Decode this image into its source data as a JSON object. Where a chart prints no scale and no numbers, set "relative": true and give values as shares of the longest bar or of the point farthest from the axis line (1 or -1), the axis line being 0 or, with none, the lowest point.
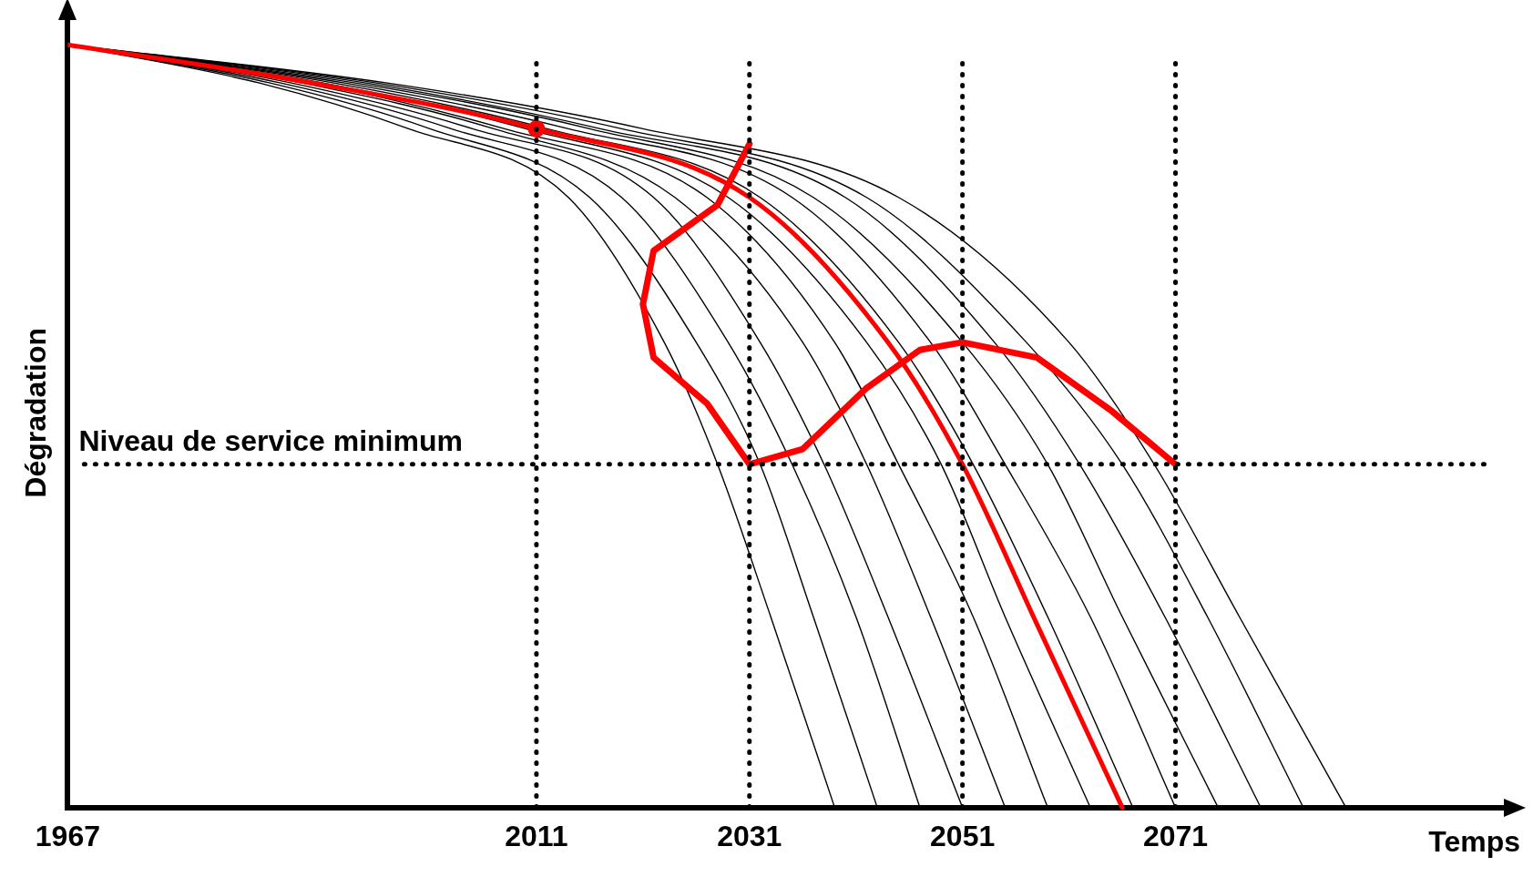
{
  "chart_data": {
    "type": "line",
    "relative": true,
    "xlabel": "Temps",
    "ylabel": "Dégradation",
    "xlim": [
      1967,
      2102
    ],
    "xticks": [
      1967,
      2011,
      2031,
      2051,
      2071
    ],
    "grid": false,
    "legend": false,
    "marker": "none",
    "series": [
      {
        "color": "#000000",
        "x": [
          1967,
          1985,
          1999,
          2014,
          2023,
          2028,
          2033,
          2039
        ],
        "values": [
          1,
          0.95,
          0.89,
          0.8,
          0.61,
          0.45,
          0.25,
          0
        ]
      },
      {
        "color": "#000000",
        "x": [
          1967,
          1986,
          2001,
          2016,
          2026,
          2032,
          2037,
          2043
        ],
        "values": [
          1,
          0.95,
          0.89,
          0.8,
          0.61,
          0.45,
          0.25,
          0
        ]
      },
      {
        "color": "#000000",
        "x": [
          1967,
          1987,
          2003,
          2019,
          2029,
          2035,
          2041,
          2047
        ],
        "values": [
          1,
          0.95,
          0.89,
          0.8,
          0.61,
          0.45,
          0.25,
          0
        ]
      },
      {
        "color": "#000000",
        "x": [
          1967,
          1988,
          2005,
          2022,
          2032,
          2038,
          2044,
          2051
        ],
        "values": [
          1,
          0.95,
          0.89,
          0.8,
          0.61,
          0.45,
          0.25,
          0
        ]
      },
      {
        "color": "#000000",
        "x": [
          1967,
          1989,
          2007,
          2024,
          2036,
          2042,
          2048,
          2055
        ],
        "values": [
          1,
          0.95,
          0.89,
          0.8,
          0.61,
          0.45,
          0.25,
          0
        ]
      },
      {
        "color": "#000000",
        "x": [
          1967,
          1990,
          2008,
          2027,
          2039,
          2045,
          2052,
          2059
        ],
        "values": [
          1,
          0.95,
          0.89,
          0.8,
          0.61,
          0.45,
          0.25,
          0
        ]
      },
      {
        "color": "#000000",
        "x": [
          1967,
          1991,
          2010,
          2029,
          2042,
          2049,
          2055,
          2063
        ],
        "values": [
          1,
          0.95,
          0.89,
          0.8,
          0.61,
          0.45,
          0.25,
          0
        ]
      },
      {
        "color": "#000000",
        "x": [
          1967,
          1992,
          2012,
          2032,
          2045,
          2052,
          2059,
          2067
        ],
        "values": [
          1,
          0.95,
          0.89,
          0.8,
          0.61,
          0.45,
          0.25,
          0
        ]
      },
      {
        "color": "#000000",
        "x": [
          1967,
          1993,
          2014,
          2035,
          2048,
          2055,
          2063,
          2071
        ],
        "values": [
          1,
          0.95,
          0.89,
          0.8,
          0.61,
          0.45,
          0.25,
          0
        ]
      },
      {
        "color": "#000000",
        "x": [
          1967,
          1994,
          2016,
          2037,
          2051,
          2059,
          2066,
          2075
        ],
        "values": [
          1,
          0.95,
          0.89,
          0.8,
          0.61,
          0.45,
          0.25,
          0
        ]
      },
      {
        "color": "#000000",
        "x": [
          1967,
          1995,
          2017,
          2040,
          2054,
          2062,
          2070,
          2079
        ],
        "values": [
          1,
          0.95,
          0.89,
          0.8,
          0.61,
          0.45,
          0.25,
          0
        ]
      },
      {
        "color": "#000000",
        "x": [
          1967,
          1996,
          2019,
          2042,
          2057,
          2066,
          2074,
          2083
        ],
        "values": [
          1,
          0.95,
          0.89,
          0.8,
          0.61,
          0.45,
          0.25,
          0
        ]
      },
      {
        "color": "#000000",
        "x": [
          1967,
          1997,
          2021,
          2045,
          2061,
          2069,
          2077,
          2087
        ],
        "values": [
          1,
          0.95,
          0.89,
          0.8,
          0.61,
          0.45,
          0.25,
          0
        ]
      },
      {
        "color": "#ff0000",
        "x": [
          1967,
          1990,
          2011,
          2031,
          2044,
          2051,
          2058,
          2066
        ],
        "values": [
          1,
          0.95,
          0.89,
          0.8,
          0.61,
          0.45,
          0.24,
          0
        ]
      },
      {
        "color": "#ff0000",
        "x": [
          2031,
          2028,
          2022,
          2021,
          2022,
          2027,
          2031,
          2036,
          2042,
          2047,
          2051,
          2058,
          2065,
          2071
        ],
        "values": [
          0.87,
          0.79,
          0.73,
          0.66,
          0.59,
          0.53,
          0.45,
          0.47,
          0.55,
          0.6,
          0.61,
          0.59,
          0.52,
          0.45
        ]
      },
      {
        "type": "scatter",
        "marker": "circle",
        "color": "#ff0000",
        "x": [
          2011
        ],
        "values": [
          0.89
        ]
      }
    ],
    "ref_lines": [
      {
        "axis": "y",
        "value": 0.45,
        "label": "Niveau de service minimum",
        "line_style": "dotted",
        "color": "#000000"
      },
      {
        "axis": "x",
        "value": 2011,
        "line_style": "dotted",
        "color": "#000000"
      },
      {
        "axis": "x",
        "value": 2031,
        "line_style": "dotted",
        "color": "#000000"
      },
      {
        "axis": "x",
        "value": 2051,
        "line_style": "dotted",
        "color": "#000000"
      },
      {
        "axis": "x",
        "value": 2071,
        "line_style": "dotted",
        "color": "#000000"
      }
    ]
  }
}
